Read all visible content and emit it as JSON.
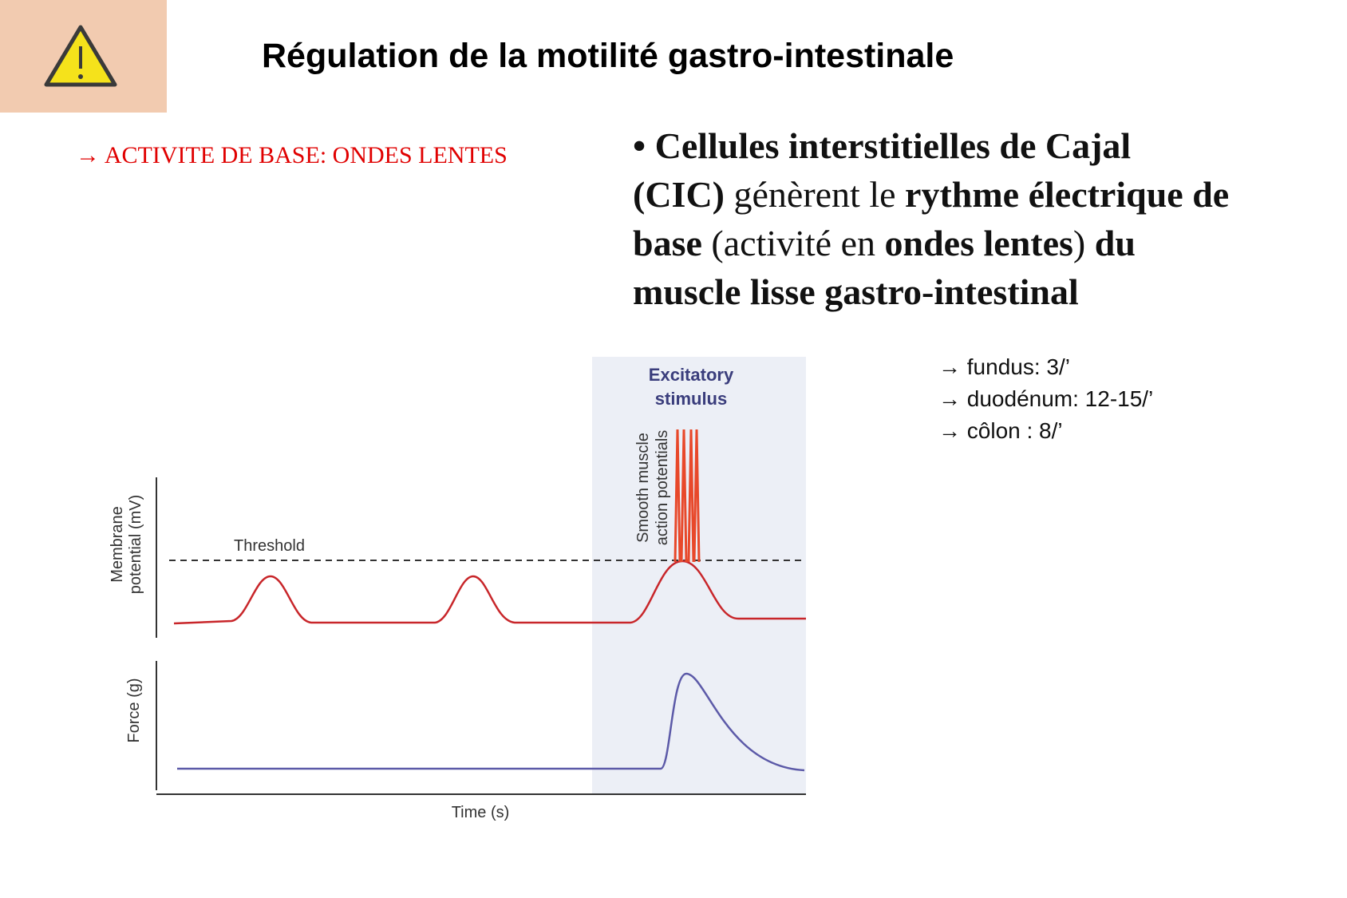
{
  "header": {
    "title": "Régulation de la motilité gastro-intestinale"
  },
  "note": "→ ACTIVITE DE BASE: ONDES LENTES",
  "paragraph": {
    "lines": [
      [
        {
          "text": "• Cellules interstitielles de Cajal",
          "bold": true
        }
      ],
      [
        {
          "text": "(CIC)",
          "bold": true
        },
        {
          "text": " génèrent le ",
          "bold": false
        },
        {
          "text": "rythme électrique de",
          "bold": true
        }
      ],
      [
        {
          "text": "base",
          "bold": true
        },
        {
          "text": " (activité en ",
          "bold": false
        },
        {
          "text": "ondes lentes",
          "bold": true
        },
        {
          "text": ")",
          "bold": false
        },
        {
          "text": " du",
          "bold": true
        }
      ],
      [
        {
          "text": "muscle lisse gastro-intestinal",
          "bold": true
        }
      ]
    ]
  },
  "list": [
    "→ fundus: 3/’",
    "→ duodénum: 12-15/’",
    "→ côlon : 8/’"
  ],
  "figure": {
    "stimulus": [
      "Excitatory",
      "stimulus"
    ],
    "spikes_label": [
      "Smooth muscle",
      "action potentials"
    ],
    "threshold": "Threshold",
    "y_label_top": [
      "Membrane",
      "potential (mV)"
    ],
    "y_label_bottom": "Force (g)",
    "x_label": "Time (s)"
  }
}
